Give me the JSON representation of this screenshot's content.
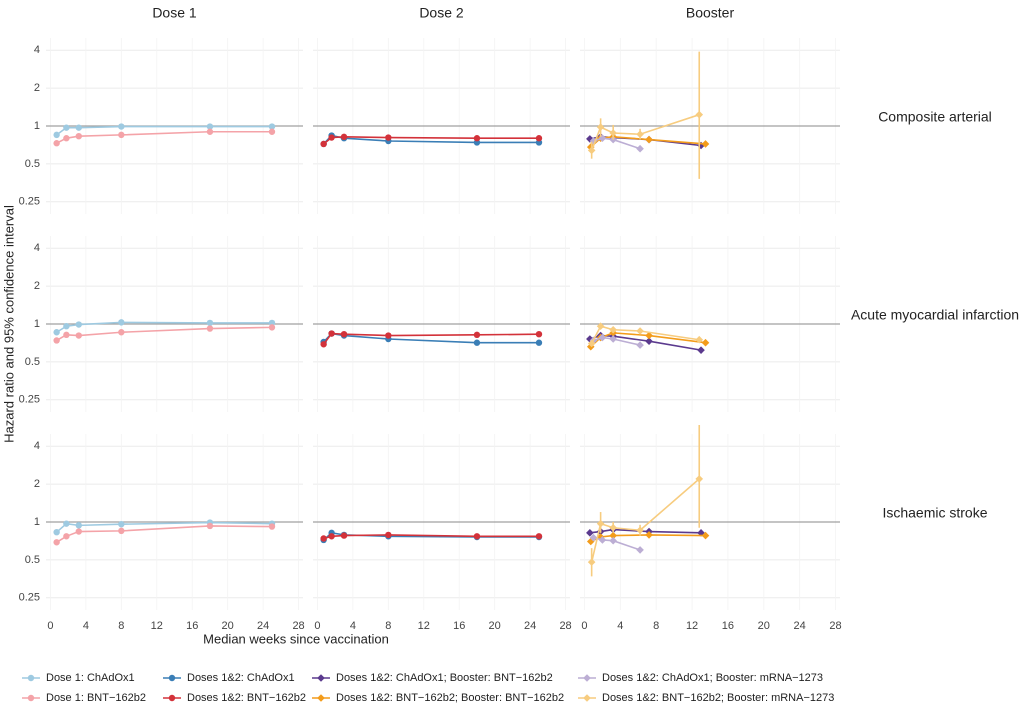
{
  "chart_data": {
    "type": "line",
    "panel_columns": [
      "Dose 1",
      "Dose 2",
      "Booster"
    ],
    "panel_rows": [
      "Composite arterial",
      "Acute myocardial infarction",
      "Ischaemic stroke"
    ],
    "xlabel": "Median weeks since vaccination",
    "ylabel": "Hazard ratio and 95% confidence interval",
    "x_ticks": [
      0,
      4,
      8,
      12,
      16,
      20,
      24,
      28
    ],
    "xlim": [
      -0.5,
      28.5
    ],
    "y_ticks": [
      0.25,
      0.5,
      1,
      2,
      4
    ],
    "y_tick_labels": [
      "0.25",
      "0.5",
      "1",
      "2",
      "4"
    ],
    "y_scale": "log",
    "ylim": [
      0.2,
      5
    ],
    "reference_line": 1,
    "grid": true,
    "legend_position": "bottom",
    "series": [
      {
        "key": "d1_chad",
        "name": "Dose 1: ChAdOx1",
        "color": "#9ecae1",
        "marker": "circle",
        "column": 0
      },
      {
        "key": "d1_bnt",
        "name": "Dose 1: BNT−162b2",
        "color": "#f4a3a8",
        "marker": "circle",
        "column": 0
      },
      {
        "key": "d12_chad",
        "name": "Doses 1&2: ChAdOx1",
        "color": "#3a7eb6",
        "marker": "circle",
        "column": 1
      },
      {
        "key": "d12_bnt",
        "name": "Doses 1&2: BNT−162b2",
        "color": "#d3323a",
        "marker": "circle",
        "column": 1
      },
      {
        "key": "bst_chad_bnt",
        "name": "Doses 1&2: ChAdOx1; Booster: BNT−162b2",
        "color": "#5b3a8e",
        "marker": "diamond",
        "column": 2
      },
      {
        "key": "bst_bnt_bnt",
        "name": "Doses 1&2: BNT−162b2; Booster: BNT−162b2",
        "color": "#f39c1b",
        "marker": "diamond",
        "column": 2
      },
      {
        "key": "bst_chad_mrna",
        "name": "Doses 1&2: ChAdOx1; Booster: mRNA−1273",
        "color": "#bcaed4",
        "marker": "diamond",
        "column": 2
      },
      {
        "key": "bst_bnt_mrna",
        "name": "Doses 1&2: BNT−162b2; Booster: mRNA−1273",
        "color": "#f7cc7f",
        "marker": "diamond",
        "column": 2
      }
    ],
    "legend_order": [
      "d1_chad",
      "d12_chad",
      "bst_chad_bnt",
      "bst_chad_mrna",
      "d1_bnt",
      "d12_bnt",
      "bst_bnt_bnt",
      "bst_bnt_mrna"
    ],
    "data": {
      "Composite arterial": {
        "d1_chad": {
          "x": [
            0.7,
            1.8,
            3.2,
            8,
            18,
            25
          ],
          "y": [
            0.85,
            0.97,
            0.97,
            0.99,
            0.99,
            0.99
          ]
        },
        "d1_bnt": {
          "x": [
            0.7,
            1.8,
            3.2,
            8,
            18,
            25
          ],
          "y": [
            0.73,
            0.8,
            0.83,
            0.85,
            0.9,
            0.9
          ]
        },
        "d12_chad": {
          "x": [
            0.7,
            1.6,
            3,
            8,
            18,
            25
          ],
          "y": [
            0.72,
            0.84,
            0.8,
            0.76,
            0.74,
            0.74
          ]
        },
        "d12_bnt": {
          "x": [
            0.7,
            1.6,
            3,
            8,
            18,
            25
          ],
          "y": [
            0.72,
            0.81,
            0.82,
            0.81,
            0.8,
            0.8
          ]
        },
        "bst_chad_bnt": {
          "x": [
            0.6,
            1.8,
            3.2,
            7.2,
            13
          ],
          "y": [
            0.79,
            0.82,
            0.81,
            0.78,
            0.7
          ]
        },
        "bst_bnt_bnt": {
          "x": [
            0.7,
            1.8,
            3.2,
            7.2,
            13.5
          ],
          "y": [
            0.68,
            0.8,
            0.82,
            0.78,
            0.72
          ]
        },
        "bst_chad_mrna": {
          "x": [
            1,
            2,
            3.2,
            6.2
          ],
          "y": [
            0.76,
            0.8,
            0.78,
            0.66
          ]
        },
        "bst_bnt_mrna": {
          "x": [
            0.8,
            1.8,
            3.2,
            6.2,
            12.8
          ],
          "y": [
            0.64,
            0.98,
            0.88,
            0.86,
            1.23
          ],
          "lo": [
            0.55,
            0.82,
            0.78,
            0.78,
            0.38
          ],
          "hi": [
            0.75,
            1.15,
            1.02,
            0.95,
            3.9
          ]
        }
      },
      "Acute myocardial infarction": {
        "d1_chad": {
          "x": [
            0.7,
            1.8,
            3.2,
            8,
            18,
            25
          ],
          "y": [
            0.86,
            0.96,
            0.99,
            1.03,
            1.02,
            1.02
          ]
        },
        "d1_bnt": {
          "x": [
            0.7,
            1.8,
            3.2,
            8,
            18,
            25
          ],
          "y": [
            0.74,
            0.82,
            0.81,
            0.86,
            0.92,
            0.94
          ]
        },
        "d12_chad": {
          "x": [
            0.7,
            1.6,
            3,
            8,
            18,
            25
          ],
          "y": [
            0.72,
            0.84,
            0.81,
            0.76,
            0.71,
            0.71
          ]
        },
        "d12_bnt": {
          "x": [
            0.7,
            1.6,
            3,
            8,
            18,
            25
          ],
          "y": [
            0.69,
            0.84,
            0.83,
            0.81,
            0.82,
            0.83
          ]
        },
        "bst_chad_bnt": {
          "x": [
            0.6,
            1.8,
            3.2,
            7.2,
            13
          ],
          "y": [
            0.76,
            0.81,
            0.8,
            0.73,
            0.62
          ]
        },
        "bst_bnt_bnt": {
          "x": [
            0.7,
            1.8,
            3.2,
            7.2,
            13.5
          ],
          "y": [
            0.66,
            0.78,
            0.85,
            0.81,
            0.71
          ]
        },
        "bst_chad_mrna": {
          "x": [
            1,
            2,
            3.2,
            6.2
          ],
          "y": [
            0.74,
            0.78,
            0.76,
            0.68
          ]
        },
        "bst_bnt_mrna": {
          "x": [
            0.8,
            1.8,
            3.2,
            6.2,
            12.8
          ],
          "y": [
            0.7,
            0.96,
            0.9,
            0.88,
            0.75
          ]
        }
      },
      "Ischaemic stroke": {
        "d1_chad": {
          "x": [
            0.7,
            1.8,
            3.2,
            8,
            18,
            25
          ],
          "y": [
            0.83,
            0.97,
            0.94,
            0.96,
            0.99,
            0.97
          ]
        },
        "d1_bnt": {
          "x": [
            0.7,
            1.8,
            3.2,
            8,
            18,
            25
          ],
          "y": [
            0.69,
            0.77,
            0.84,
            0.85,
            0.93,
            0.92
          ]
        },
        "d12_chad": {
          "x": [
            0.7,
            1.6,
            3,
            8,
            18,
            25
          ],
          "y": [
            0.72,
            0.82,
            0.79,
            0.77,
            0.76,
            0.76
          ]
        },
        "d12_bnt": {
          "x": [
            0.7,
            1.6,
            3,
            8,
            18,
            25
          ],
          "y": [
            0.74,
            0.77,
            0.78,
            0.79,
            0.77,
            0.77
          ]
        },
        "bst_chad_bnt": {
          "x": [
            0.6,
            1.8,
            3.2,
            7.2,
            13
          ],
          "y": [
            0.82,
            0.84,
            0.87,
            0.84,
            0.82
          ]
        },
        "bst_bnt_bnt": {
          "x": [
            0.7,
            1.8,
            3.2,
            7.2,
            13.5
          ],
          "y": [
            0.7,
            0.76,
            0.78,
            0.79,
            0.78
          ]
        },
        "bst_chad_mrna": {
          "x": [
            1,
            2,
            3.2,
            6.2
          ],
          "y": [
            0.75,
            0.72,
            0.71,
            0.6
          ]
        },
        "bst_bnt_mrna": {
          "x": [
            0.8,
            1.8,
            3.2,
            6.2,
            12.8
          ],
          "y": [
            0.48,
            0.97,
            0.9,
            0.86,
            2.2
          ],
          "lo": [
            0.37,
            0.82,
            0.82,
            0.78,
            0.9
          ],
          "hi": [
            0.62,
            1.2,
            1.0,
            0.95,
            5.9
          ]
        }
      }
    }
  }
}
